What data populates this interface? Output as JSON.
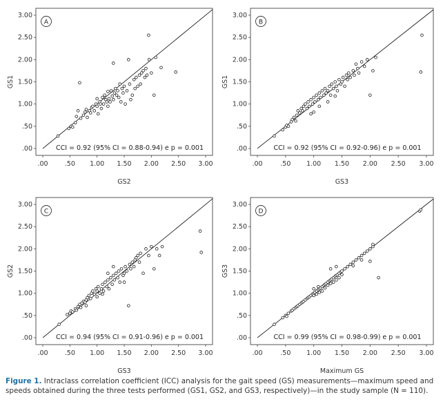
{
  "chart_data": [
    {
      "type": "scatter",
      "panel": "A",
      "xlabel": "GS2",
      "ylabel": "GS1",
      "xlim": [
        0.0,
        3.0
      ],
      "ylim": [
        0.0,
        3.0
      ],
      "xticks": [
        ".00",
        ".50",
        "1.00",
        "1.50",
        "2.00",
        "2.50",
        "3.00"
      ],
      "yticks": [
        ".00",
        ".50",
        "1.00",
        "1.50",
        "2.00",
        "2.50",
        "3.00"
      ],
      "annotation": "CCI = 0.92 (95% CI = 0.88-0.94) e p = 0.001",
      "identity_line": true,
      "points": [
        [
          0.28,
          0.28
        ],
        [
          0.48,
          0.45
        ],
        [
          0.52,
          0.5
        ],
        [
          0.55,
          0.48
        ],
        [
          0.6,
          0.58
        ],
        [
          0.62,
          0.72
        ],
        [
          0.65,
          0.85
        ],
        [
          0.68,
          1.48
        ],
        [
          0.7,
          0.68
        ],
        [
          0.75,
          0.75
        ],
        [
          0.78,
          0.82
        ],
        [
          0.8,
          0.88
        ],
        [
          0.82,
          0.7
        ],
        [
          0.86,
          0.85
        ],
        [
          0.88,
          0.8
        ],
        [
          0.9,
          0.92
        ],
        [
          0.92,
          0.95
        ],
        [
          0.95,
          0.85
        ],
        [
          0.98,
          1.0
        ],
        [
          1.0,
          0.95
        ],
        [
          1.0,
          1.12
        ],
        [
          1.02,
          0.78
        ],
        [
          1.05,
          1.05
        ],
        [
          1.06,
          1.0
        ],
        [
          1.08,
          0.9
        ],
        [
          1.1,
          1.15
        ],
        [
          1.12,
          1.0
        ],
        [
          1.14,
          1.2
        ],
        [
          1.16,
          1.1
        ],
        [
          1.18,
          1.05
        ],
        [
          1.2,
          0.95
        ],
        [
          1.2,
          1.28
        ],
        [
          1.22,
          1.12
        ],
        [
          1.24,
          1.05
        ],
        [
          1.26,
          1.3
        ],
        [
          1.28,
          1.18
        ],
        [
          1.3,
          1.1
        ],
        [
          1.3,
          1.92
        ],
        [
          1.32,
          1.25
        ],
        [
          1.34,
          1.35
        ],
        [
          1.36,
          1.2
        ],
        [
          1.38,
          1.3
        ],
        [
          1.4,
          1.15
        ],
        [
          1.42,
          1.45
        ],
        [
          1.44,
          1.05
        ],
        [
          1.46,
          1.35
        ],
        [
          1.48,
          1.25
        ],
        [
          1.5,
          1.4
        ],
        [
          1.52,
          1.0
        ],
        [
          1.55,
          1.3
        ],
        [
          1.58,
          2.0
        ],
        [
          1.6,
          1.45
        ],
        [
          1.62,
          1.1
        ],
        [
          1.65,
          1.2
        ],
        [
          1.68,
          1.55
        ],
        [
          1.7,
          1.35
        ],
        [
          1.72,
          1.6
        ],
        [
          1.75,
          1.4
        ],
        [
          1.78,
          1.65
        ],
        [
          1.8,
          1.45
        ],
        [
          1.82,
          1.7
        ],
        [
          1.85,
          1.75
        ],
        [
          1.88,
          1.6
        ],
        [
          1.9,
          1.8
        ],
        [
          1.92,
          1.65
        ],
        [
          1.96,
          2.0
        ],
        [
          2.0,
          1.7
        ],
        [
          2.05,
          1.2
        ],
        [
          2.08,
          2.05
        ],
        [
          2.18,
          1.82
        ],
        [
          2.45,
          1.72
        ],
        [
          1.95,
          2.55
        ]
      ]
    },
    {
      "type": "scatter",
      "panel": "B",
      "xlabel": "GS3",
      "ylabel": "GS1",
      "xlim": [
        0.0,
        3.0
      ],
      "ylim": [
        0.0,
        3.0
      ],
      "xticks": [
        ".00",
        ".50",
        "1.00",
        "1.50",
        "2.00",
        "2.50",
        "3.00"
      ],
      "yticks": [
        ".00",
        ".50",
        "1.00",
        "1.50",
        "2.00",
        "2.50",
        "3.00"
      ],
      "annotation": "CCI = 0.92 (95% CI = 0.92-0.96) e p = 0.001",
      "identity_line": true,
      "points": [
        [
          0.3,
          0.28
        ],
        [
          0.45,
          0.42
        ],
        [
          0.5,
          0.48
        ],
        [
          0.52,
          0.52
        ],
        [
          0.55,
          0.5
        ],
        [
          0.6,
          0.6
        ],
        [
          0.62,
          0.65
        ],
        [
          0.65,
          0.7
        ],
        [
          0.68,
          0.62
        ],
        [
          0.7,
          0.75
        ],
        [
          0.72,
          0.85
        ],
        [
          0.75,
          0.8
        ],
        [
          0.78,
          0.9
        ],
        [
          0.8,
          0.85
        ],
        [
          0.82,
          0.95
        ],
        [
          0.85,
          1.0
        ],
        [
          0.88,
          0.9
        ],
        [
          0.9,
          1.05
        ],
        [
          0.92,
          0.95
        ],
        [
          0.95,
          1.1
        ],
        [
          0.98,
          1.0
        ],
        [
          1.0,
          1.15
        ],
        [
          1.02,
          1.05
        ],
        [
          1.05,
          1.2
        ],
        [
          1.08,
          1.1
        ],
        [
          1.1,
          1.25
        ],
        [
          1.12,
          1.15
        ],
        [
          1.15,
          1.3
        ],
        [
          1.18,
          1.2
        ],
        [
          1.2,
          1.35
        ],
        [
          1.22,
          1.25
        ],
        [
          1.25,
          1.3
        ],
        [
          1.28,
          1.4
        ],
        [
          1.3,
          1.2
        ],
        [
          1.32,
          1.45
        ],
        [
          1.35,
          1.35
        ],
        [
          1.38,
          1.5
        ],
        [
          1.4,
          1.4
        ],
        [
          1.42,
          1.3
        ],
        [
          1.45,
          1.55
        ],
        [
          1.48,
          1.45
        ],
        [
          1.5,
          1.5
        ],
        [
          1.52,
          1.6
        ],
        [
          1.55,
          1.4
        ],
        [
          1.58,
          1.65
        ],
        [
          1.6,
          1.55
        ],
        [
          1.62,
          1.7
        ],
        [
          1.65,
          1.6
        ],
        [
          1.7,
          1.75
        ],
        [
          1.72,
          1.65
        ],
        [
          1.75,
          1.9
        ],
        [
          1.78,
          1.8
        ],
        [
          1.8,
          1.7
        ],
        [
          1.85,
          1.95
        ],
        [
          1.9,
          1.85
        ],
        [
          1.95,
          2.0
        ],
        [
          2.0,
          1.2
        ],
        [
          2.05,
          1.75
        ],
        [
          2.1,
          2.05
        ],
        [
          2.9,
          1.72
        ],
        [
          2.92,
          2.55
        ],
        [
          1.0,
          0.82
        ],
        [
          1.1,
          0.95
        ],
        [
          0.95,
          0.78
        ],
        [
          1.25,
          1.05
        ],
        [
          1.38,
          1.18
        ]
      ]
    },
    {
      "type": "scatter",
      "panel": "C",
      "xlabel": "GS3",
      "ylabel": "GS2",
      "xlim": [
        0.0,
        3.0
      ],
      "ylim": [
        0.0,
        3.0
      ],
      "xticks": [
        ".00",
        ".50",
        "1.00",
        "1.50",
        "2.00",
        "2.50",
        "3.00"
      ],
      "yticks": [
        ".00",
        ".50",
        "1.00",
        "1.50",
        "2.00",
        "2.50",
        "3.00"
      ],
      "annotation": "CCI = 0.94 (95% CI = 0.91-0.96) e p = 0.001",
      "identity_line": true,
      "points": [
        [
          0.3,
          0.3
        ],
        [
          0.45,
          0.52
        ],
        [
          0.5,
          0.55
        ],
        [
          0.52,
          0.6
        ],
        [
          0.55,
          0.58
        ],
        [
          0.6,
          0.65
        ],
        [
          0.62,
          0.62
        ],
        [
          0.65,
          0.7
        ],
        [
          0.68,
          0.75
        ],
        [
          0.7,
          0.68
        ],
        [
          0.72,
          0.78
        ],
        [
          0.75,
          0.82
        ],
        [
          0.78,
          0.8
        ],
        [
          0.8,
          0.85
        ],
        [
          0.82,
          0.9
        ],
        [
          0.85,
          0.95
        ],
        [
          0.88,
          0.88
        ],
        [
          0.9,
          1.0
        ],
        [
          0.92,
          1.05
        ],
        [
          0.95,
          0.98
        ],
        [
          0.98,
          1.1
        ],
        [
          1.0,
          1.05
        ],
        [
          1.02,
          1.15
        ],
        [
          1.05,
          1.0
        ],
        [
          1.08,
          1.1
        ],
        [
          1.1,
          1.2
        ],
        [
          1.12,
          1.05
        ],
        [
          1.15,
          1.25
        ],
        [
          1.18,
          1.15
        ],
        [
          1.2,
          1.3
        ],
        [
          1.22,
          1.1
        ],
        [
          1.25,
          1.35
        ],
        [
          1.28,
          1.2
        ],
        [
          1.3,
          1.4
        ],
        [
          1.32,
          1.3
        ],
        [
          1.35,
          1.45
        ],
        [
          1.38,
          1.35
        ],
        [
          1.4,
          1.5
        ],
        [
          1.42,
          1.25
        ],
        [
          1.45,
          1.55
        ],
        [
          1.48,
          1.4
        ],
        [
          1.5,
          1.45
        ],
        [
          1.52,
          1.6
        ],
        [
          1.55,
          1.5
        ],
        [
          1.58,
          0.72
        ],
        [
          1.6,
          1.65
        ],
        [
          1.62,
          1.55
        ],
        [
          1.65,
          1.7
        ],
        [
          1.68,
          1.6
        ],
        [
          1.7,
          1.75
        ],
        [
          1.72,
          1.8
        ],
        [
          1.75,
          1.85
        ],
        [
          1.78,
          1.7
        ],
        [
          1.8,
          1.9
        ],
        [
          1.85,
          1.45
        ],
        [
          1.9,
          2.0
        ],
        [
          1.95,
          1.85
        ],
        [
          2.0,
          2.05
        ],
        [
          2.05,
          1.55
        ],
        [
          2.1,
          2.0
        ],
        [
          2.15,
          1.85
        ],
        [
          2.2,
          2.05
        ],
        [
          2.9,
          2.4
        ],
        [
          2.92,
          1.92
        ],
        [
          1.3,
          1.6
        ],
        [
          1.2,
          1.45
        ],
        [
          1.0,
          0.92
        ],
        [
          1.1,
          0.98
        ],
        [
          0.8,
          0.72
        ],
        [
          1.5,
          1.25
        ]
      ]
    },
    {
      "type": "scatter",
      "panel": "D",
      "xlabel": "Maximum GS",
      "ylabel": "GS3",
      "xlim": [
        0.0,
        3.0
      ],
      "ylim": [
        0.0,
        3.0
      ],
      "xticks": [
        ".00",
        ".50",
        "1.00",
        "1.50",
        "2.00",
        "2.50",
        "3.00"
      ],
      "yticks": [
        ".00",
        ".50",
        "1.00",
        "1.50",
        "2.00",
        "2.50",
        "3.00"
      ],
      "annotation": "CCI = 0.99 (95% CI = 0.98-0.99) e p = 0.001",
      "identity_line": true,
      "points": [
        [
          0.3,
          0.3
        ],
        [
          0.45,
          0.45
        ],
        [
          0.5,
          0.5
        ],
        [
          0.52,
          0.48
        ],
        [
          0.55,
          0.55
        ],
        [
          0.6,
          0.6
        ],
        [
          0.62,
          0.62
        ],
        [
          0.65,
          0.65
        ],
        [
          0.68,
          0.68
        ],
        [
          0.7,
          0.7
        ],
        [
          0.72,
          0.72
        ],
        [
          0.75,
          0.75
        ],
        [
          0.78,
          0.78
        ],
        [
          0.8,
          0.8
        ],
        [
          0.82,
          0.82
        ],
        [
          0.85,
          0.85
        ],
        [
          0.88,
          0.88
        ],
        [
          0.9,
          0.9
        ],
        [
          0.92,
          0.92
        ],
        [
          0.95,
          0.95
        ],
        [
          0.98,
          0.98
        ],
        [
          1.0,
          1.0
        ],
        [
          1.02,
          1.02
        ],
        [
          1.05,
          1.05
        ],
        [
          1.08,
          1.08
        ],
        [
          1.1,
          1.1
        ],
        [
          1.12,
          1.12
        ],
        [
          1.15,
          1.15
        ],
        [
          1.18,
          1.18
        ],
        [
          1.2,
          1.2
        ],
        [
          1.22,
          1.22
        ],
        [
          1.25,
          1.25
        ],
        [
          1.28,
          1.28
        ],
        [
          1.3,
          1.3
        ],
        [
          1.32,
          1.32
        ],
        [
          1.35,
          1.35
        ],
        [
          1.38,
          1.38
        ],
        [
          1.4,
          1.4
        ],
        [
          1.42,
          1.42
        ],
        [
          1.45,
          1.45
        ],
        [
          1.48,
          1.48
        ],
        [
          1.5,
          1.5
        ],
        [
          1.55,
          1.55
        ],
        [
          1.6,
          1.6
        ],
        [
          1.65,
          1.65
        ],
        [
          1.7,
          1.7
        ],
        [
          1.75,
          1.75
        ],
        [
          1.8,
          1.8
        ],
        [
          1.85,
          1.85
        ],
        [
          1.9,
          1.9
        ],
        [
          1.95,
          1.95
        ],
        [
          2.0,
          2.0
        ],
        [
          2.05,
          2.05
        ],
        [
          2.05,
          2.1
        ],
        [
          1.0,
          0.95
        ],
        [
          1.05,
          0.98
        ],
        [
          1.1,
          1.02
        ],
        [
          1.15,
          1.05
        ],
        [
          1.2,
          1.12
        ],
        [
          1.25,
          1.18
        ],
        [
          1.3,
          1.22
        ],
        [
          1.35,
          1.25
        ],
        [
          1.4,
          1.3
        ],
        [
          1.45,
          1.35
        ],
        [
          1.5,
          1.42
        ],
        [
          1.0,
          1.1
        ],
        [
          1.08,
          1.15
        ],
        [
          1.3,
          1.55
        ],
        [
          1.4,
          1.6
        ],
        [
          1.7,
          1.62
        ],
        [
          1.85,
          1.75
        ],
        [
          2.0,
          1.72
        ],
        [
          2.15,
          1.35
        ],
        [
          2.88,
          2.85
        ],
        [
          2.9,
          2.88
        ]
      ]
    }
  ],
  "caption": {
    "label": "Figure 1.",
    "text": " Intraclass correlation coefficient (ICC) analysis for the gait speed (GS) measurements—maximum speed and speeds obtained during the three tests performed (GS1, GS2, and GS3, respectively)—in the study sample (N = 110)."
  }
}
